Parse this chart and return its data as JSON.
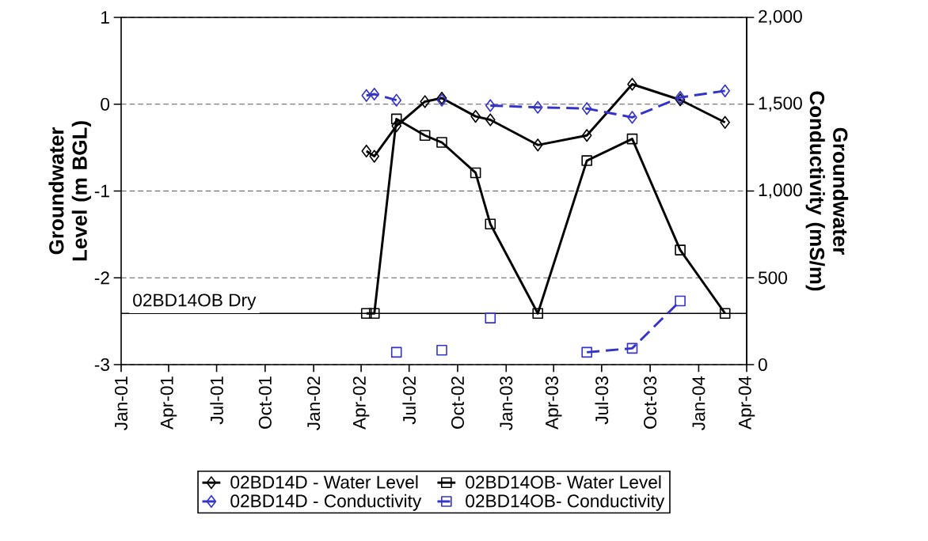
{
  "chart_data": {
    "type": "line",
    "ylabel": "Groundwater Level (m BGL)",
    "y2label": "Groundwater Conductivity (mS/m)",
    "xlim": [
      "2001-01-01",
      "2004-04-01"
    ],
    "xticks": [
      {
        "value": "2001-01-01",
        "label": "Jan-01"
      },
      {
        "value": "2001-04-01",
        "label": "Apr-01"
      },
      {
        "value": "2001-07-01",
        "label": "Jul-01"
      },
      {
        "value": "2001-10-01",
        "label": "Oct-01"
      },
      {
        "value": "2002-01-01",
        "label": "Jan-02"
      },
      {
        "value": "2002-04-01",
        "label": "Apr-02"
      },
      {
        "value": "2002-07-01",
        "label": "Jul-02"
      },
      {
        "value": "2002-10-01",
        "label": "Oct-02"
      },
      {
        "value": "2003-01-01",
        "label": "Jan-03"
      },
      {
        "value": "2003-04-01",
        "label": "Apr-03"
      },
      {
        "value": "2003-07-01",
        "label": "Jul-03"
      },
      {
        "value": "2003-10-01",
        "label": "Oct-03"
      },
      {
        "value": "2004-01-01",
        "label": "Jan-04"
      },
      {
        "value": "2004-04-01",
        "label": "Apr-04"
      }
    ],
    "ylim": [
      -3,
      1
    ],
    "yticks": [
      -3,
      -2,
      -1,
      0,
      1
    ],
    "y2lim": [
      0,
      2000
    ],
    "y2ticks": [
      0,
      500,
      {
        "value": 1000,
        "label": "1,000"
      },
      {
        "value": 1500,
        "label": "1,500"
      },
      {
        "value": 2000,
        "label": "2,000"
      }
    ],
    "grid": "y",
    "legend": "bottom",
    "ref_lines": [
      {
        "axis": "y",
        "value": -2.41,
        "label": "02BD14OB Dry",
        "color": "#000000",
        "line_style": "solid"
      }
    ],
    "series": [
      {
        "name": "02BD14D - Water Level",
        "color": "#000000",
        "marker": "diamond",
        "line_style": "solid",
        "x": [
          "2002-04-11",
          "2002-04-26",
          "2002-06-07",
          "2002-07-31",
          "2002-09-01",
          "2002-11-04",
          "2002-12-02",
          "2003-03-02",
          "2003-06-03",
          "2003-08-28",
          "2003-11-27",
          "2004-02-20"
        ],
        "values": [
          -0.54,
          -0.6,
          -0.25,
          0.03,
          0.07,
          -0.14,
          -0.18,
          -0.47,
          -0.36,
          0.23,
          0.05,
          -0.21
        ]
      },
      {
        "name": "02BD14OB- Water Level",
        "color": "#000000",
        "marker": "square",
        "line_style": "solid",
        "x": [
          "2002-04-11",
          "2002-04-26",
          "2002-06-07",
          "2002-07-31",
          "2002-09-01",
          "2002-11-04",
          "2002-12-02",
          "2003-03-02",
          "2003-06-03",
          "2003-08-28",
          "2003-11-27",
          "2004-02-20"
        ],
        "values": [
          -2.41,
          -2.41,
          -0.17,
          -0.36,
          -0.44,
          -0.79,
          -1.38,
          -2.41,
          -0.65,
          -0.4,
          -1.68,
          -2.41
        ]
      },
      {
        "name": "02BD14D - Conductivity",
        "color": "#3333cc",
        "marker": "diamond",
        "line_style": "dashed",
        "axis": "y2",
        "x": [
          "2002-04-11",
          "2002-04-26",
          "2002-06-07",
          "2002-07-31",
          "2002-09-01",
          "2002-11-04",
          "2002-12-02",
          "2003-03-02",
          "2003-06-03",
          "2003-08-28",
          "2003-11-27",
          "2004-02-20"
        ],
        "values": [
          1550,
          1558,
          1523,
          null,
          1523,
          null,
          1492,
          1482,
          1475,
          1424,
          1539,
          1577
        ]
      },
      {
        "name": "02BD14OB- Conductivity",
        "color": "#3333cc",
        "marker": "square",
        "line_style": "dashed",
        "axis": "y2",
        "x": [
          "2002-06-07",
          "2002-07-31",
          "2002-09-01",
          "2002-11-04",
          "2002-12-02",
          "2003-03-02",
          "2003-06-03",
          "2003-08-28",
          "2003-11-27"
        ],
        "values": [
          71,
          null,
          83,
          null,
          268,
          null,
          71,
          94,
          367
        ]
      }
    ]
  }
}
